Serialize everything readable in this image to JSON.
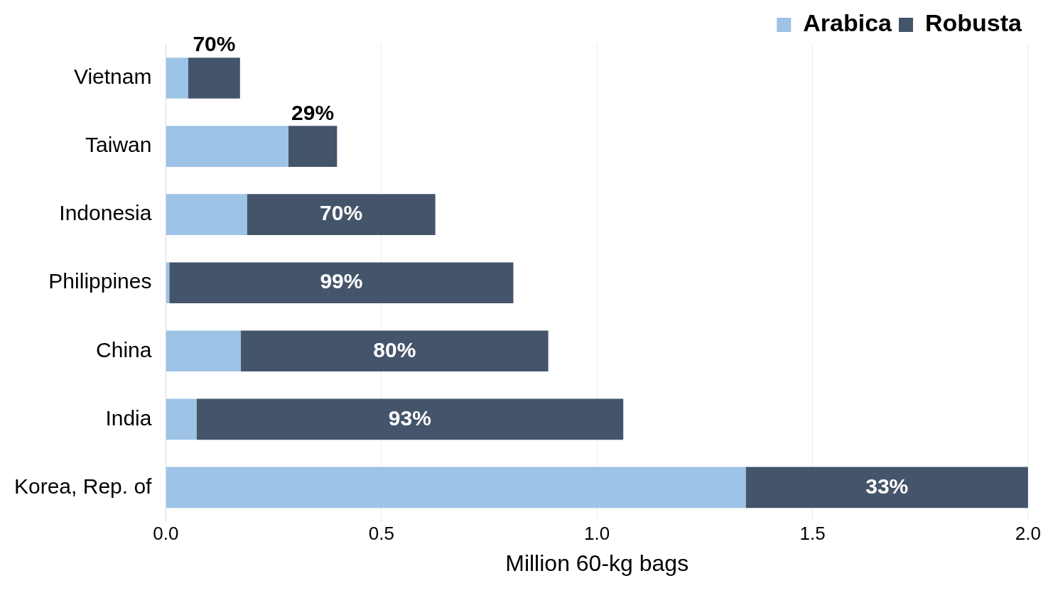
{
  "chart_data": {
    "type": "bar",
    "orientation": "horizontal",
    "stacked": true,
    "xlabel": "Million 60-kg bags",
    "categories": [
      "Vietnam",
      "Taiwan",
      "Indonesia",
      "Philippines",
      "China",
      "India",
      "Korea, Rep. of"
    ],
    "series": [
      {
        "name": "Arabica",
        "color": "#9dc3e6",
        "values": [
          0.052,
          0.284,
          0.188,
          0.008,
          0.174,
          0.071,
          1.345
        ]
      },
      {
        "name": "Robusta",
        "color": "#44546a",
        "values": [
          0.12,
          0.113,
          0.437,
          0.798,
          0.713,
          0.99,
          0.655
        ]
      }
    ],
    "annotations": [
      "70%",
      "29%",
      "70%",
      "99%",
      "80%",
      "93%",
      "33%"
    ],
    "xlim": [
      0,
      2
    ],
    "xticks": [
      {
        "value": 0,
        "label": "0.0"
      },
      {
        "value": 0.5,
        "label": "0.5"
      },
      {
        "value": 1,
        "label": "1.0"
      },
      {
        "value": 1.5,
        "label": "1.5"
      },
      {
        "value": 2,
        "label": "2.0"
      }
    ],
    "grid": "x",
    "legend": "top right"
  }
}
